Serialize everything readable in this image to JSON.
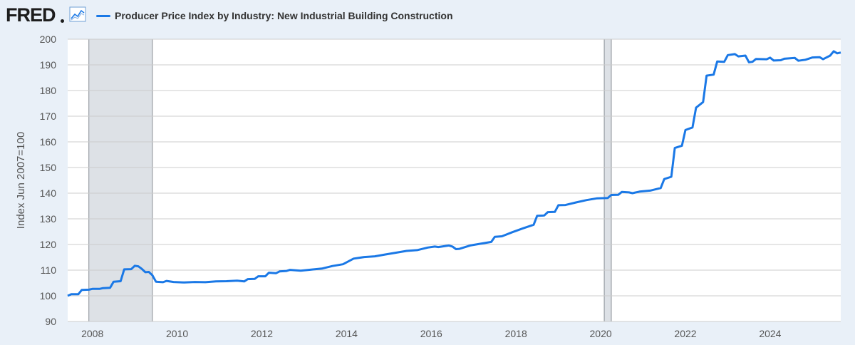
{
  "app": {
    "brand": "FRED"
  },
  "icons": {
    "logo_graph": "line-chart-icon"
  },
  "colors": {
    "series": "#1a78e6",
    "recession": "#dde1e6",
    "grid": "#cccccc",
    "background": "#e9f0f8"
  },
  "chart_data": {
    "type": "line",
    "title": "Producer Price Index by Industry: New Industrial Building Construction",
    "xlabel": "",
    "ylabel": "Index Jun 2007=100",
    "xlim": [
      "2007-06",
      "2025-09"
    ],
    "ylim": [
      90,
      200
    ],
    "yticks": [
      90,
      100,
      110,
      120,
      130,
      140,
      150,
      160,
      170,
      180,
      190,
      200
    ],
    "xticks": [
      "2008",
      "2010",
      "2012",
      "2014",
      "2016",
      "2018",
      "2020",
      "2022",
      "2024"
    ],
    "grid": true,
    "legend": "top-left",
    "recessions": [
      {
        "start": "2007-12",
        "end": "2009-06"
      },
      {
        "start": "2020-02",
        "end": "2020-04"
      }
    ],
    "series": [
      {
        "name": "Producer Price Index by Industry: New Industrial Building Construction",
        "points": [
          [
            "2007-06",
            100.0
          ],
          [
            "2007-07",
            100.6
          ],
          [
            "2007-09",
            100.6
          ],
          [
            "2007-10",
            102.3
          ],
          [
            "2007-12",
            102.4
          ],
          [
            "2008-01",
            102.7
          ],
          [
            "2008-03",
            102.7
          ],
          [
            "2008-04",
            103.0
          ],
          [
            "2008-06",
            103.1
          ],
          [
            "2008-07",
            105.5
          ],
          [
            "2008-09",
            105.7
          ],
          [
            "2008-10",
            110.3
          ],
          [
            "2008-12",
            110.4
          ],
          [
            "2009-01",
            111.7
          ],
          [
            "2009-02",
            111.5
          ],
          [
            "2009-03",
            110.5
          ],
          [
            "2009-04",
            109.2
          ],
          [
            "2009-05",
            109.3
          ],
          [
            "2009-06",
            108.0
          ],
          [
            "2009-07",
            105.5
          ],
          [
            "2009-09",
            105.3
          ],
          [
            "2009-10",
            105.8
          ],
          [
            "2009-12",
            105.4
          ],
          [
            "2010-03",
            105.2
          ],
          [
            "2010-06",
            105.4
          ],
          [
            "2010-09",
            105.3
          ],
          [
            "2010-12",
            105.6
          ],
          [
            "2011-03",
            105.7
          ],
          [
            "2011-06",
            105.9
          ],
          [
            "2011-08",
            105.6
          ],
          [
            "2011-09",
            106.5
          ],
          [
            "2011-11",
            106.6
          ],
          [
            "2011-12",
            107.6
          ],
          [
            "2012-02",
            107.6
          ],
          [
            "2012-03",
            109.0
          ],
          [
            "2012-05",
            108.8
          ],
          [
            "2012-06",
            109.5
          ],
          [
            "2012-08",
            109.7
          ],
          [
            "2012-09",
            110.1
          ],
          [
            "2012-12",
            109.8
          ],
          [
            "2013-03",
            110.2
          ],
          [
            "2013-06",
            110.6
          ],
          [
            "2013-09",
            111.6
          ],
          [
            "2013-12",
            112.3
          ],
          [
            "2014-03",
            114.5
          ],
          [
            "2014-06",
            115.1
          ],
          [
            "2014-09",
            115.4
          ],
          [
            "2014-12",
            116.1
          ],
          [
            "2015-03",
            116.8
          ],
          [
            "2015-06",
            117.5
          ],
          [
            "2015-09",
            117.8
          ],
          [
            "2015-12",
            118.8
          ],
          [
            "2016-02",
            119.2
          ],
          [
            "2016-03",
            119.0
          ],
          [
            "2016-06",
            119.6
          ],
          [
            "2016-07",
            119.2
          ],
          [
            "2016-08",
            118.2
          ],
          [
            "2016-09",
            118.3
          ],
          [
            "2016-12",
            119.6
          ],
          [
            "2017-03",
            120.3
          ],
          [
            "2017-06",
            121.0
          ],
          [
            "2017-07",
            123.0
          ],
          [
            "2017-09",
            123.2
          ],
          [
            "2017-12",
            124.8
          ],
          [
            "2018-03",
            126.3
          ],
          [
            "2018-06",
            127.7
          ],
          [
            "2018-07",
            131.2
          ],
          [
            "2018-09",
            131.3
          ],
          [
            "2018-10",
            132.6
          ],
          [
            "2018-12",
            132.7
          ],
          [
            "2019-01",
            135.3
          ],
          [
            "2019-03",
            135.4
          ],
          [
            "2019-06",
            136.4
          ],
          [
            "2019-09",
            137.3
          ],
          [
            "2019-12",
            138.0
          ],
          [
            "2020-03",
            138.1
          ],
          [
            "2020-04",
            139.3
          ],
          [
            "2020-06",
            139.4
          ],
          [
            "2020-07",
            140.5
          ],
          [
            "2020-09",
            140.3
          ],
          [
            "2020-10",
            140.0
          ],
          [
            "2020-12",
            140.6
          ],
          [
            "2021-03",
            141.0
          ],
          [
            "2021-06",
            142.0
          ],
          [
            "2021-07",
            145.5
          ],
          [
            "2021-09",
            146.4
          ],
          [
            "2021-10",
            157.6
          ],
          [
            "2021-12",
            158.5
          ],
          [
            "2022-01",
            164.6
          ],
          [
            "2022-03",
            165.6
          ],
          [
            "2022-04",
            173.3
          ],
          [
            "2022-06",
            175.5
          ],
          [
            "2022-07",
            185.8
          ],
          [
            "2022-09",
            186.2
          ],
          [
            "2022-10",
            191.3
          ],
          [
            "2022-12",
            191.2
          ],
          [
            "2023-01",
            193.8
          ],
          [
            "2023-03",
            194.2
          ],
          [
            "2023-04",
            193.3
          ],
          [
            "2023-06",
            193.6
          ],
          [
            "2023-07",
            191.0
          ],
          [
            "2023-08",
            191.2
          ],
          [
            "2023-09",
            192.3
          ],
          [
            "2023-12",
            192.2
          ],
          [
            "2024-01",
            192.8
          ],
          [
            "2024-02",
            191.7
          ],
          [
            "2024-04",
            191.8
          ],
          [
            "2024-05",
            192.4
          ],
          [
            "2024-08",
            192.7
          ],
          [
            "2024-09",
            191.6
          ],
          [
            "2024-11",
            192.0
          ],
          [
            "2025-01",
            192.9
          ],
          [
            "2025-03",
            193.0
          ],
          [
            "2025-04",
            192.2
          ],
          [
            "2025-06",
            193.6
          ],
          [
            "2025-07",
            195.3
          ],
          [
            "2025-08",
            194.5
          ],
          [
            "2025-09",
            194.8
          ]
        ]
      }
    ]
  }
}
